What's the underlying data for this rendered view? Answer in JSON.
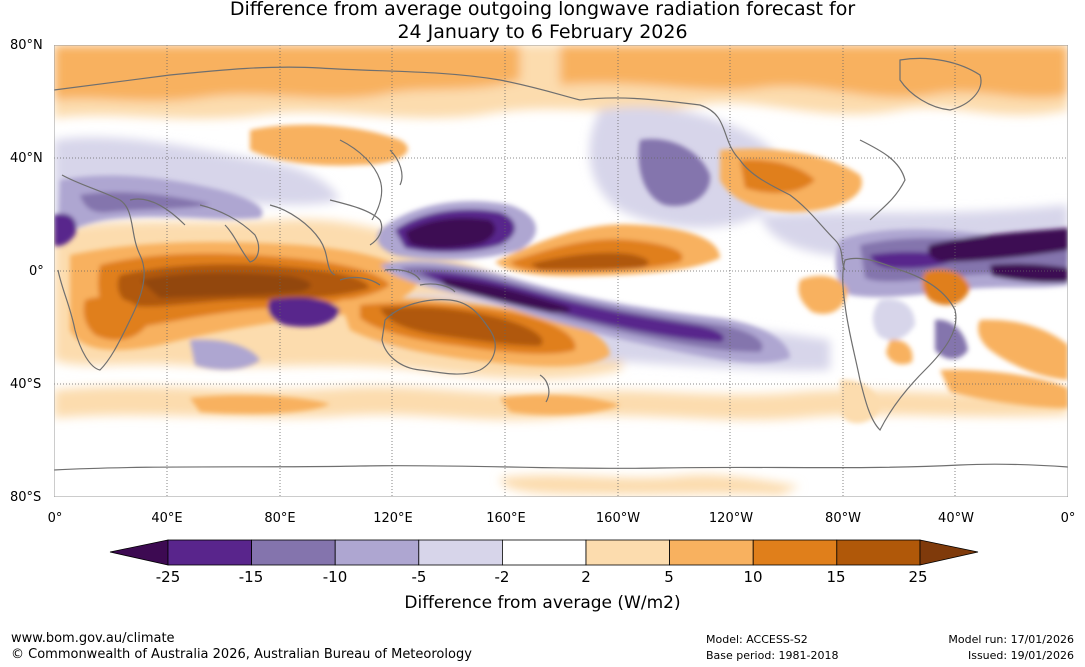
{
  "title": {
    "line1": "Difference from average outgoing longwave radiation forecast for",
    "line2": "24 January to 6 February 2026"
  },
  "axes": {
    "latitudes": [
      "80°N",
      "40°N",
      "0°",
      "40°S",
      "80°S"
    ],
    "longitudes": [
      "0°",
      "40°E",
      "80°E",
      "120°E",
      "160°E",
      "160°W",
      "120°W",
      "80°W",
      "40°W",
      "0°"
    ]
  },
  "colorbar": {
    "title": "Difference from average (W/m2)",
    "ticks": [
      "-25",
      "-15",
      "-10",
      "-5",
      "-2",
      "2",
      "5",
      "10",
      "15",
      "25"
    ],
    "colors": [
      "#3d0a52",
      "#59258c",
      "#8474ad",
      "#aea6d1",
      "#d7d5ea",
      "#ffffff",
      "#fcdcae",
      "#f8b15f",
      "#e07f1b",
      "#b05809",
      "#7f3a0b"
    ]
  },
  "footer": {
    "website": "www.bom.gov.au/climate",
    "copyright": "© Commonwealth of Australia 2026, Australian Bureau of Meteorology",
    "model": "Model: ACCESS-S2",
    "base_period": "Base period: 1981-2018",
    "model_run": "Model run: 17/01/2026",
    "issued": "Issued: 19/01/2026"
  }
}
